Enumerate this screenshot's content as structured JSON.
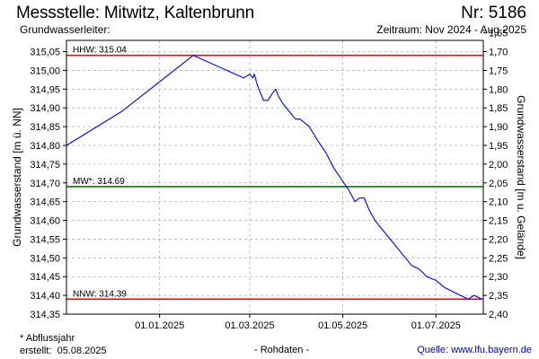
{
  "header": {
    "title": "Messstelle: Mitwitz, Kaltenbrunn",
    "nr": "Nr: 5186",
    "aquifer_label": "Grundwasserleiter:",
    "period": "Zeitraum: Nov 2024 - Aug 2025"
  },
  "footer": {
    "note": "* Abflussjahr",
    "created_label": "erstellt:",
    "created_date": "05.08.2025",
    "raw": "- Rohdaten -",
    "source_label": "Quelle:",
    "source_url": "www.lfu.bayern.de"
  },
  "colors": {
    "series": "#0000ff",
    "hhw": "#ff0000",
    "mw": "#008000",
    "nnw": "#ff0000",
    "grid": "#b4b4b4"
  },
  "chart_data": {
    "type": "line",
    "ylabel": "Grundwasserstand [m ü. NN]",
    "y2label": "Grundwasserstand [m u. Gelände]",
    "ylim": [
      314.35,
      315.08
    ],
    "y2lim": [
      2.4,
      1.67
    ],
    "y_ticks": [
      "315,05",
      "315,00",
      "314,95",
      "314,90",
      "314,85",
      "314,80",
      "314,75",
      "314,70",
      "314,65",
      "314,60",
      "314,55",
      "314,50",
      "314,45",
      "314,40",
      "314,35"
    ],
    "y2_ticks": [
      "1,65",
      "1,70",
      "1,75",
      "1,80",
      "1,85",
      "1,90",
      "1,95",
      "2,00",
      "2,05",
      "2,10",
      "2,15",
      "2,20",
      "2,25",
      "2,30",
      "2,35",
      "2,40"
    ],
    "xlim": [
      "2024-11-01",
      "2025-08-01"
    ],
    "x_ticks": [
      "01.01.2025",
      "01.03.2025",
      "01.05.2025",
      "01.07.2025"
    ],
    "grid": true,
    "reference_lines": [
      {
        "label": "HHW: 315.04",
        "value": 315.04,
        "color": "#ff0000"
      },
      {
        "label": "MW*: 314.69",
        "value": 314.69,
        "color": "#008000"
      },
      {
        "label": "NNW: 314.39",
        "value": 314.39,
        "color": "#ff0000"
      }
    ],
    "series": [
      {
        "points": [
          [
            "2024-11-01",
            314.8
          ],
          [
            "2024-12-07",
            314.89
          ],
          [
            "2025-01-23",
            315.04
          ],
          [
            "2025-02-25",
            314.98
          ],
          [
            "2025-03-01",
            314.99
          ],
          [
            "2025-03-03",
            314.98
          ],
          [
            "2025-03-04",
            314.99
          ],
          [
            "2025-03-06",
            314.96
          ],
          [
            "2025-03-08",
            314.94
          ],
          [
            "2025-03-10",
            314.92
          ],
          [
            "2025-03-13",
            314.92
          ],
          [
            "2025-03-16",
            314.94
          ],
          [
            "2025-03-18",
            314.95
          ],
          [
            "2025-03-20",
            314.93
          ],
          [
            "2025-03-23",
            314.91
          ],
          [
            "2025-03-27",
            314.89
          ],
          [
            "2025-03-31",
            314.87
          ],
          [
            "2025-04-03",
            314.87
          ],
          [
            "2025-04-06",
            314.86
          ],
          [
            "2025-04-09",
            314.85
          ],
          [
            "2025-04-12",
            314.83
          ],
          [
            "2025-04-15",
            314.81
          ],
          [
            "2025-04-20",
            314.78
          ],
          [
            "2025-04-25",
            314.74
          ],
          [
            "2025-04-30",
            314.71
          ],
          [
            "2025-05-05",
            314.68
          ],
          [
            "2025-05-09",
            314.65
          ],
          [
            "2025-05-12",
            314.66
          ],
          [
            "2025-05-15",
            314.66
          ],
          [
            "2025-05-18",
            314.63
          ],
          [
            "2025-05-22",
            314.6
          ],
          [
            "2025-05-28",
            314.57
          ],
          [
            "2025-06-03",
            314.54
          ],
          [
            "2025-06-09",
            314.51
          ],
          [
            "2025-06-15",
            314.48
          ],
          [
            "2025-06-20",
            314.47
          ],
          [
            "2025-06-25",
            314.45
          ],
          [
            "2025-07-01",
            314.44
          ],
          [
            "2025-07-07",
            314.42
          ],
          [
            "2025-07-12",
            314.41
          ],
          [
            "2025-07-17",
            314.4
          ],
          [
            "2025-07-22",
            314.39
          ],
          [
            "2025-07-26",
            314.4
          ],
          [
            "2025-07-31",
            314.39
          ]
        ]
      }
    ]
  }
}
